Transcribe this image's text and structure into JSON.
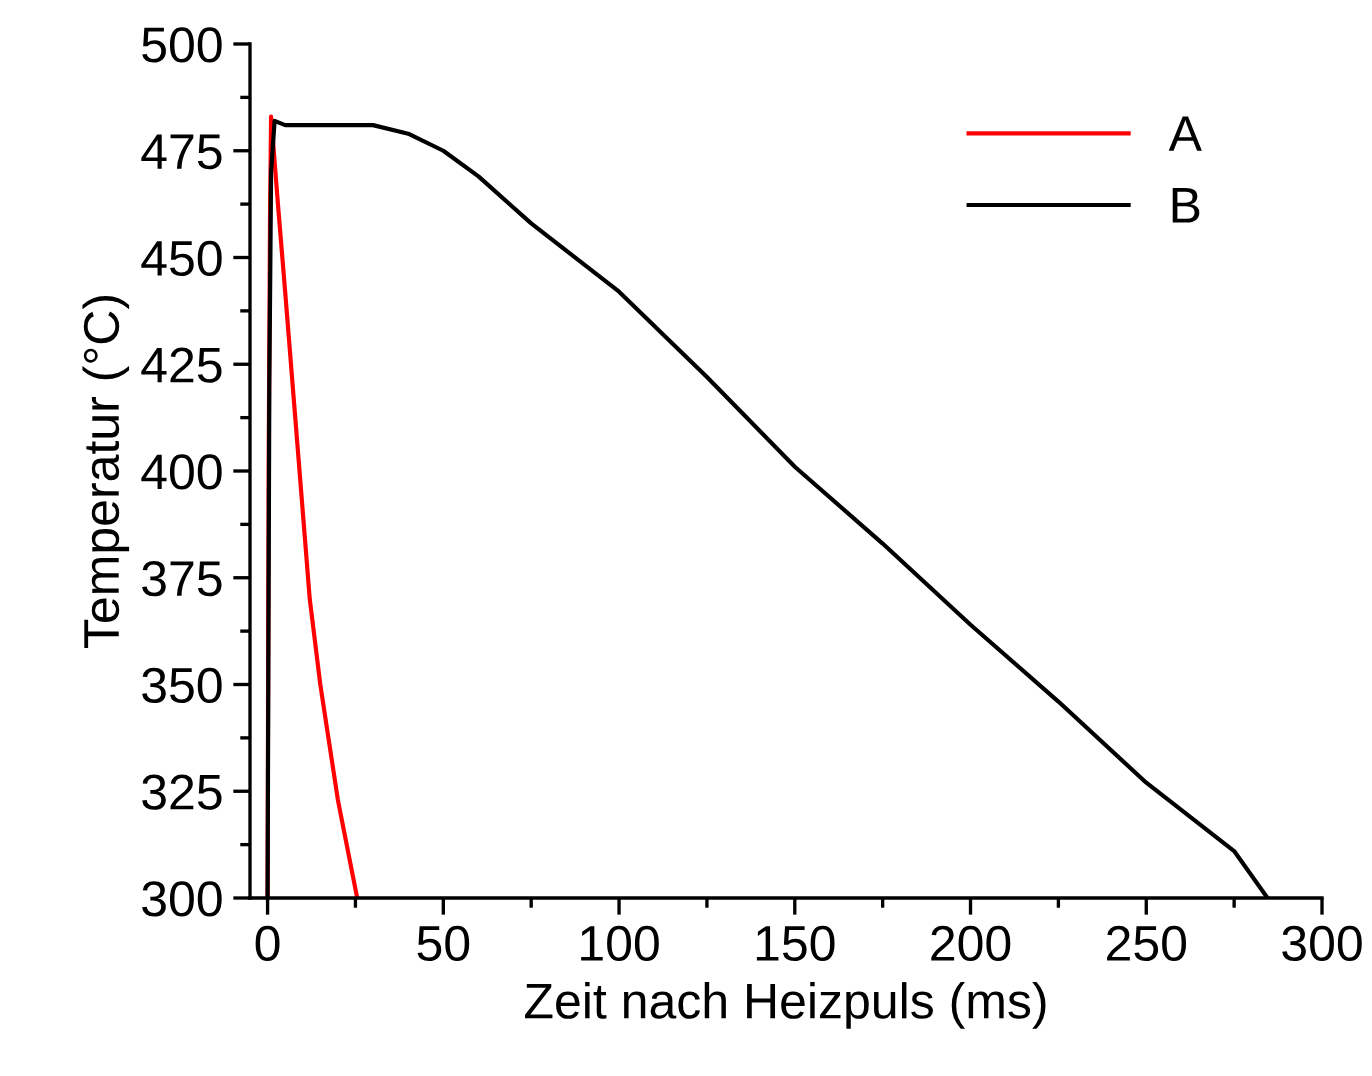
{
  "chart_data": {
    "type": "line",
    "xlabel": "Zeit nach Heizpuls (ms)",
    "ylabel": "Temperatur (°C)",
    "xlim": [
      -5,
      300
    ],
    "xticks": [
      0,
      50,
      100,
      150,
      200,
      250,
      300
    ],
    "ylim": [
      300,
      500
    ],
    "yticks": [
      300,
      325,
      350,
      375,
      400,
      425,
      450,
      475,
      500
    ],
    "grid": false,
    "legend": "top right",
    "marker": "none",
    "line_style": "solid",
    "series": [
      {
        "name": "A",
        "color": "#ff0000",
        "x": [
          0,
          0.3,
          0.7,
          1,
          3,
          5,
          8.8,
          12,
          15,
          20,
          25.5
        ],
        "values": [
          300,
          400,
          460,
          483,
          462,
          442,
          403,
          370,
          350,
          323,
          300
        ]
      },
      {
        "name": "B",
        "color": "#000000",
        "x": [
          0,
          0.5,
          1,
          2,
          5,
          10,
          20,
          30,
          40,
          50,
          60,
          75,
          100,
          125,
          150,
          175,
          200,
          225,
          250,
          275,
          284.5
        ],
        "values": [
          300,
          420,
          470,
          482,
          481,
          481,
          481,
          481,
          479,
          475,
          469,
          458,
          442,
          422,
          401,
          383,
          364,
          346,
          327,
          311,
          300
        ]
      }
    ]
  }
}
